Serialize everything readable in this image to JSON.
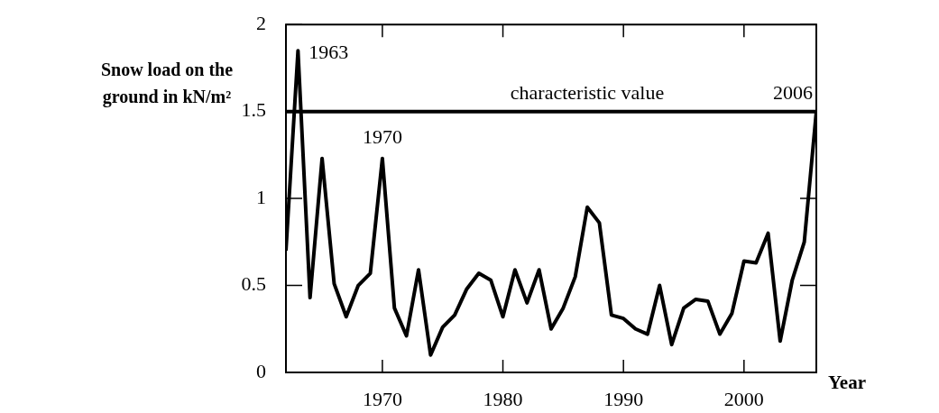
{
  "chart_data": {
    "type": "line",
    "xlabel": "Year",
    "ylabel": "Snow load on the ground in kN/m²",
    "x": [
      1962,
      1963,
      1964,
      1965,
      1966,
      1967,
      1968,
      1969,
      1970,
      1971,
      1972,
      1973,
      1974,
      1975,
      1976,
      1977,
      1978,
      1979,
      1980,
      1981,
      1982,
      1983,
      1984,
      1985,
      1986,
      1987,
      1988,
      1989,
      1990,
      1991,
      1992,
      1993,
      1994,
      1995,
      1996,
      1997,
      1998,
      1999,
      2000,
      2001,
      2002,
      2003,
      2004,
      2005,
      2006
    ],
    "series": [
      {
        "color": "#000000",
        "values": [
          0.7,
          1.85,
          0.43,
          1.23,
          0.51,
          0.32,
          0.5,
          0.57,
          1.23,
          0.37,
          0.21,
          0.59,
          0.1,
          0.26,
          0.33,
          0.48,
          0.57,
          0.53,
          0.32,
          0.59,
          0.4,
          0.59,
          0.25,
          0.37,
          0.55,
          0.95,
          0.86,
          0.33,
          0.31,
          0.25,
          0.22,
          0.5,
          0.16,
          0.37,
          0.42,
          0.41,
          0.22,
          0.34,
          0.64,
          0.63,
          0.8,
          0.18,
          0.53,
          0.75,
          1.5
        ]
      }
    ],
    "xlim": [
      1962,
      2006
    ],
    "xticks": [
      1970,
      1980,
      1990,
      2000
    ],
    "ylim": [
      0,
      2
    ],
    "yticks": [
      0,
      0.5,
      1,
      1.5,
      2
    ],
    "ref_lines": [
      {
        "axis": "y",
        "value": 1.5,
        "label": "characteristic value",
        "color": "#000000"
      }
    ],
    "annotations": [
      {
        "text": "1963",
        "x": 1963,
        "y": 1.85
      },
      {
        "text": "1970",
        "x": 1970,
        "y": 1.23
      },
      {
        "text": "2006",
        "x": 2006,
        "y": 1.5
      }
    ],
    "grid": false,
    "legend": false,
    "marker": "none",
    "line_style": "solid"
  }
}
